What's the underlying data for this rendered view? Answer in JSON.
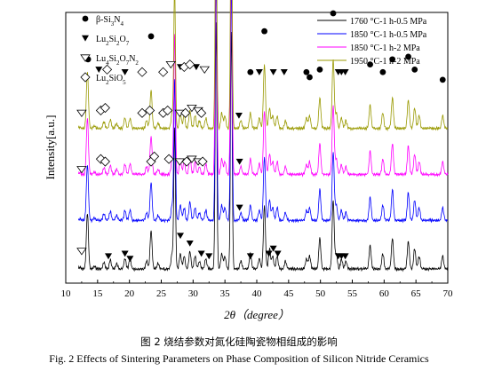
{
  "caption": {
    "chinese": "图 2  烧结参数对氮化硅陶瓷物相组成的影响",
    "english": "Fig. 2 Effects of Sintering Parameters on Phase Composition of Silicon Nitride Ceramics"
  },
  "chart_data": {
    "type": "line",
    "title": "",
    "xlabel": "2θ（degree）",
    "ylabel": "Intensity[a.u.]",
    "xlim": [
      10,
      70
    ],
    "xticks": [
      10,
      15,
      20,
      25,
      30,
      35,
      40,
      45,
      50,
      55,
      60,
      65,
      70
    ],
    "y_ticks_shown": false,
    "grid": false,
    "legend_position": "top-right",
    "series": [
      {
        "name": "1760 °C-1 h-0.5 MPa",
        "color": "#000000",
        "baseline": 0.0,
        "peaks": [
          [
            12.2,
            0.006
          ],
          [
            13.4,
            0.22
          ],
          [
            14.5,
            0.01
          ],
          [
            16.0,
            0.025
          ],
          [
            17.0,
            0.035
          ],
          [
            18.0,
            0.02
          ],
          [
            19.3,
            0.04
          ],
          [
            20.1,
            0.04
          ],
          [
            22.7,
            0.03
          ],
          [
            23.4,
            0.15
          ],
          [
            24.5,
            0.02
          ],
          [
            26.7,
            0.06
          ],
          [
            27.1,
            0.55
          ],
          [
            28.0,
            0.06
          ],
          [
            28.6,
            0.05
          ],
          [
            29.5,
            0.07
          ],
          [
            30.3,
            0.05
          ],
          [
            31.0,
            0.03
          ],
          [
            32.0,
            0.04
          ],
          [
            33.6,
            0.97
          ],
          [
            34.5,
            0.06
          ],
          [
            35.0,
            0.05
          ],
          [
            36.0,
            0.95
          ],
          [
            37.5,
            0.03
          ],
          [
            39.0,
            0.06
          ],
          [
            40.4,
            0.04
          ],
          [
            41.2,
            0.25
          ],
          [
            42.0,
            0.08
          ],
          [
            42.5,
            0.05
          ],
          [
            43.2,
            0.05
          ],
          [
            44.5,
            0.03
          ],
          [
            47.8,
            0.04
          ],
          [
            48.3,
            0.05
          ],
          [
            49.9,
            0.12
          ],
          [
            52.0,
            0.27
          ],
          [
            52.5,
            0.06
          ],
          [
            53.3,
            0.04
          ],
          [
            54.0,
            0.03
          ],
          [
            57.8,
            0.09
          ],
          [
            59.8,
            0.06
          ],
          [
            61.3,
            0.12
          ],
          [
            63.8,
            0.11
          ],
          [
            64.8,
            0.08
          ],
          [
            65.5,
            0.05
          ],
          [
            69.2,
            0.05
          ]
        ]
      },
      {
        "name": "1850 °C-1 h-0.5 MPa",
        "color": "#0000ff",
        "baseline": 0.19,
        "peaks": [
          [
            12.2,
            0.006
          ],
          [
            13.4,
            0.22
          ],
          [
            14.5,
            0.01
          ],
          [
            16.0,
            0.025
          ],
          [
            17.0,
            0.035
          ],
          [
            18.0,
            0.02
          ],
          [
            19.3,
            0.04
          ],
          [
            20.1,
            0.04
          ],
          [
            22.7,
            0.03
          ],
          [
            23.4,
            0.15
          ],
          [
            24.5,
            0.02
          ],
          [
            26.7,
            0.06
          ],
          [
            27.1,
            0.55
          ],
          [
            28.0,
            0.06
          ],
          [
            28.6,
            0.05
          ],
          [
            29.5,
            0.07
          ],
          [
            30.3,
            0.05
          ],
          [
            31.0,
            0.03
          ],
          [
            32.0,
            0.04
          ],
          [
            33.6,
            0.97
          ],
          [
            34.5,
            0.06
          ],
          [
            35.0,
            0.05
          ],
          [
            36.0,
            0.95
          ],
          [
            37.5,
            0.03
          ],
          [
            39.0,
            0.06
          ],
          [
            40.4,
            0.04
          ],
          [
            41.2,
            0.25
          ],
          [
            42.0,
            0.08
          ],
          [
            42.5,
            0.05
          ],
          [
            43.2,
            0.05
          ],
          [
            44.5,
            0.03
          ],
          [
            47.8,
            0.04
          ],
          [
            48.3,
            0.05
          ],
          [
            49.9,
            0.12
          ],
          [
            52.0,
            0.27
          ],
          [
            52.5,
            0.06
          ],
          [
            53.3,
            0.04
          ],
          [
            54.0,
            0.03
          ],
          [
            57.8,
            0.09
          ],
          [
            59.8,
            0.06
          ],
          [
            61.3,
            0.12
          ],
          [
            63.8,
            0.11
          ],
          [
            64.8,
            0.08
          ],
          [
            65.5,
            0.05
          ],
          [
            69.2,
            0.05
          ]
        ]
      },
      {
        "name": "1850 °C-1 h-2 MPa",
        "color": "#ff00ff",
        "baseline": 0.37,
        "peaks": [
          [
            12.2,
            0.006
          ],
          [
            13.4,
            0.22
          ],
          [
            14.5,
            0.01
          ],
          [
            16.0,
            0.025
          ],
          [
            17.0,
            0.035
          ],
          [
            18.0,
            0.02
          ],
          [
            19.3,
            0.04
          ],
          [
            20.1,
            0.04
          ],
          [
            22.7,
            0.03
          ],
          [
            23.4,
            0.15
          ],
          [
            24.5,
            0.02
          ],
          [
            26.7,
            0.06
          ],
          [
            27.1,
            0.55
          ],
          [
            28.0,
            0.06
          ],
          [
            28.6,
            0.05
          ],
          [
            29.5,
            0.07
          ],
          [
            30.3,
            0.05
          ],
          [
            31.0,
            0.03
          ],
          [
            32.0,
            0.04
          ],
          [
            33.6,
            0.97
          ],
          [
            34.5,
            0.06
          ],
          [
            35.0,
            0.05
          ],
          [
            36.0,
            0.95
          ],
          [
            37.5,
            0.03
          ],
          [
            39.0,
            0.06
          ],
          [
            40.4,
            0.04
          ],
          [
            41.2,
            0.25
          ],
          [
            42.0,
            0.08
          ],
          [
            42.5,
            0.05
          ],
          [
            43.2,
            0.05
          ],
          [
            44.5,
            0.03
          ],
          [
            47.8,
            0.04
          ],
          [
            48.3,
            0.05
          ],
          [
            49.9,
            0.12
          ],
          [
            52.0,
            0.27
          ],
          [
            52.5,
            0.06
          ],
          [
            53.3,
            0.04
          ],
          [
            54.0,
            0.03
          ],
          [
            57.8,
            0.09
          ],
          [
            59.8,
            0.06
          ],
          [
            61.3,
            0.12
          ],
          [
            63.8,
            0.11
          ],
          [
            64.8,
            0.08
          ],
          [
            65.5,
            0.05
          ],
          [
            69.2,
            0.05
          ]
        ]
      },
      {
        "name": "1950 °C-1 h-2 MPa",
        "color": "#999900",
        "baseline": 0.55,
        "peaks": [
          [
            12.2,
            0.006
          ],
          [
            13.4,
            0.22
          ],
          [
            14.5,
            0.01
          ],
          [
            16.0,
            0.025
          ],
          [
            17.0,
            0.035
          ],
          [
            18.0,
            0.02
          ],
          [
            19.3,
            0.04
          ],
          [
            20.1,
            0.04
          ],
          [
            22.7,
            0.03
          ],
          [
            23.4,
            0.15
          ],
          [
            24.5,
            0.02
          ],
          [
            26.7,
            0.06
          ],
          [
            27.1,
            0.55
          ],
          [
            28.0,
            0.06
          ],
          [
            28.6,
            0.05
          ],
          [
            29.5,
            0.07
          ],
          [
            30.3,
            0.05
          ],
          [
            31.0,
            0.03
          ],
          [
            32.0,
            0.04
          ],
          [
            33.6,
            0.97
          ],
          [
            34.5,
            0.06
          ],
          [
            35.0,
            0.05
          ],
          [
            36.0,
            0.95
          ],
          [
            37.5,
            0.03
          ],
          [
            39.0,
            0.06
          ],
          [
            40.4,
            0.04
          ],
          [
            41.2,
            0.25
          ],
          [
            42.0,
            0.08
          ],
          [
            42.5,
            0.05
          ],
          [
            43.2,
            0.05
          ],
          [
            44.5,
            0.03
          ],
          [
            47.8,
            0.04
          ],
          [
            48.3,
            0.05
          ],
          [
            49.9,
            0.12
          ],
          [
            52.0,
            0.27
          ],
          [
            52.5,
            0.06
          ],
          [
            53.3,
            0.04
          ],
          [
            54.0,
            0.03
          ],
          [
            57.8,
            0.09
          ],
          [
            59.8,
            0.06
          ],
          [
            61.3,
            0.12
          ],
          [
            63.8,
            0.11
          ],
          [
            64.8,
            0.08
          ],
          [
            65.5,
            0.05
          ],
          [
            69.2,
            0.05
          ]
        ]
      }
    ],
    "phase_legend": [
      {
        "symbol": "filled-circle",
        "label": "β-Si3N4"
      },
      {
        "symbol": "filled-triangle-down",
        "label": "Lu2Si2O7"
      },
      {
        "symbol": "open-triangle-down",
        "label": "Lu4Si2O7N2"
      },
      {
        "symbol": "open-diamond",
        "label": "Lu2SiO5"
      }
    ],
    "phase_markers": [
      {
        "symbol": "filled-circle",
        "x": 13.5,
        "y": 0.82
      },
      {
        "symbol": "filled-circle",
        "x": 23.4,
        "y": 0.91
      },
      {
        "symbol": "filled-circle",
        "x": 27.1,
        "y": 1.33
      },
      {
        "symbol": "filled-circle",
        "x": 33.6,
        "y": 1.33
      },
      {
        "symbol": "filled-circle",
        "x": 36.0,
        "y": 1.33
      },
      {
        "symbol": "filled-circle",
        "x": 41.2,
        "y": 0.93
      },
      {
        "symbol": "filled-circle",
        "x": 39.0,
        "y": 0.77
      },
      {
        "symbol": "filled-circle",
        "x": 47.8,
        "y": 0.77
      },
      {
        "symbol": "filled-circle",
        "x": 48.3,
        "y": 0.75
      },
      {
        "symbol": "filled-circle",
        "x": 49.9,
        "y": 0.78
      },
      {
        "symbol": "filled-circle",
        "x": 52.0,
        "y": 1.0
      },
      {
        "symbol": "filled-circle",
        "x": 57.8,
        "y": 0.8
      },
      {
        "symbol": "filled-circle",
        "x": 59.8,
        "y": 0.77
      },
      {
        "symbol": "filled-circle",
        "x": 61.3,
        "y": 0.82
      },
      {
        "symbol": "filled-circle",
        "x": 63.8,
        "y": 0.83
      },
      {
        "symbol": "filled-circle",
        "x": 64.8,
        "y": 0.78
      },
      {
        "symbol": "filled-circle",
        "x": 69.2,
        "y": 0.74
      },
      {
        "symbol": "filled-triangle-down",
        "x": 15.2,
        "y": 0.78
      },
      {
        "symbol": "filled-triangle-down",
        "x": 19.3,
        "y": 0.77
      },
      {
        "symbol": "filled-triangle-down",
        "x": 28.0,
        "y": 0.79
      },
      {
        "symbol": "filled-triangle-down",
        "x": 30.5,
        "y": 0.79
      },
      {
        "symbol": "filled-triangle-down",
        "x": 40.4,
        "y": 0.77
      },
      {
        "symbol": "filled-triangle-down",
        "x": 42.6,
        "y": 0.77
      },
      {
        "symbol": "filled-triangle-down",
        "x": 44.3,
        "y": 0.77
      },
      {
        "symbol": "filled-triangle-down",
        "x": 52.8,
        "y": 0.77
      },
      {
        "symbol": "filled-triangle-down",
        "x": 53.3,
        "y": 0.77
      },
      {
        "symbol": "filled-triangle-down",
        "x": 53.9,
        "y": 0.77
      },
      {
        "symbol": "filled-triangle-down",
        "x": 37.2,
        "y": 0.6
      },
      {
        "symbol": "filled-triangle-down",
        "x": 37.3,
        "y": 0.42
      },
      {
        "symbol": "filled-triangle-down",
        "x": 37.3,
        "y": 0.24
      },
      {
        "symbol": "filled-triangle-down",
        "x": 16.7,
        "y": 0.05
      },
      {
        "symbol": "filled-triangle-down",
        "x": 19.3,
        "y": 0.06
      },
      {
        "symbol": "filled-triangle-down",
        "x": 20.1,
        "y": 0.04
      },
      {
        "symbol": "filled-triangle-down",
        "x": 28.0,
        "y": 0.13
      },
      {
        "symbol": "filled-triangle-down",
        "x": 29.5,
        "y": 0.1
      },
      {
        "symbol": "filled-triangle-down",
        "x": 31.3,
        "y": 0.06
      },
      {
        "symbol": "filled-triangle-down",
        "x": 32.5,
        "y": 0.05
      },
      {
        "symbol": "filled-triangle-down",
        "x": 39.0,
        "y": 0.05
      },
      {
        "symbol": "filled-triangle-down",
        "x": 41.9,
        "y": 0.06
      },
      {
        "symbol": "filled-triangle-down",
        "x": 42.6,
        "y": 0.08
      },
      {
        "symbol": "filled-triangle-down",
        "x": 43.3,
        "y": 0.06
      },
      {
        "symbol": "filled-triangle-down",
        "x": 52.8,
        "y": 0.05
      },
      {
        "symbol": "filled-triangle-down",
        "x": 53.3,
        "y": 0.05
      },
      {
        "symbol": "filled-triangle-down",
        "x": 53.9,
        "y": 0.05
      },
      {
        "symbol": "open-triangle-down",
        "x": 26.5,
        "y": 0.8
      },
      {
        "symbol": "open-triangle-down",
        "x": 31.8,
        "y": 0.78
      },
      {
        "symbol": "open-triangle-down",
        "x": 12.5,
        "y": 0.61
      },
      {
        "symbol": "open-triangle-down",
        "x": 27.9,
        "y": 0.61
      },
      {
        "symbol": "open-triangle-down",
        "x": 29.8,
        "y": 0.63
      },
      {
        "symbol": "open-triangle-down",
        "x": 30.8,
        "y": 0.62
      },
      {
        "symbol": "open-triangle-down",
        "x": 12.5,
        "y": 0.39
      },
      {
        "symbol": "open-triangle-down",
        "x": 27.9,
        "y": 0.42
      },
      {
        "symbol": "open-triangle-down",
        "x": 29.8,
        "y": 0.43
      },
      {
        "symbol": "open-triangle-down",
        "x": 30.8,
        "y": 0.42
      },
      {
        "symbol": "open-triangle-down",
        "x": 12.5,
        "y": 0.07
      },
      {
        "symbol": "open-diamond",
        "x": 16.5,
        "y": 0.78
      },
      {
        "symbol": "open-diamond",
        "x": 22.0,
        "y": 0.77
      },
      {
        "symbol": "open-diamond",
        "x": 25.3,
        "y": 0.77
      },
      {
        "symbol": "open-diamond",
        "x": 28.6,
        "y": 0.79
      },
      {
        "symbol": "open-diamond",
        "x": 29.5,
        "y": 0.8
      },
      {
        "symbol": "open-diamond",
        "x": 15.5,
        "y": 0.62
      },
      {
        "symbol": "open-diamond",
        "x": 16.2,
        "y": 0.63
      },
      {
        "symbol": "open-diamond",
        "x": 22.0,
        "y": 0.61
      },
      {
        "symbol": "open-diamond",
        "x": 23.2,
        "y": 0.62
      },
      {
        "symbol": "open-diamond",
        "x": 25.3,
        "y": 0.61
      },
      {
        "symbol": "open-diamond",
        "x": 26.0,
        "y": 0.62
      },
      {
        "symbol": "open-diamond",
        "x": 28.8,
        "y": 0.61
      },
      {
        "symbol": "open-diamond",
        "x": 31.3,
        "y": 0.61
      },
      {
        "symbol": "open-diamond",
        "x": 15.5,
        "y": 0.43
      },
      {
        "symbol": "open-diamond",
        "x": 16.2,
        "y": 0.42
      },
      {
        "symbol": "open-diamond",
        "x": 23.4,
        "y": 0.42
      },
      {
        "symbol": "open-diamond",
        "x": 23.9,
        "y": 0.44
      },
      {
        "symbol": "open-diamond",
        "x": 26.2,
        "y": 0.43
      },
      {
        "symbol": "open-diamond",
        "x": 29.0,
        "y": 0.42
      },
      {
        "symbol": "open-diamond",
        "x": 31.5,
        "y": 0.42
      }
    ]
  }
}
